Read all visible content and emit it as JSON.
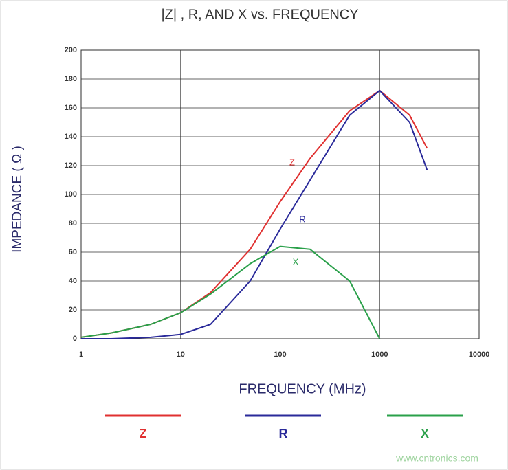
{
  "chart_data": {
    "type": "line",
    "title": "|Z| , R, AND X vs. FREQUENCY",
    "x_label": "FREQUENCY (MHz)",
    "y_label": "IMPEDANCE ( Ω )",
    "x": [
      1,
      2,
      5,
      10,
      20,
      50,
      100,
      200,
      500,
      1000,
      2000,
      3000
    ],
    "series": [
      {
        "name": "Z",
        "color": "#e03030",
        "values": [
          1,
          4,
          10,
          18,
          32,
          62,
          95,
          125,
          158,
          172,
          155,
          132
        ]
      },
      {
        "name": "R",
        "color": "#2a2a9a",
        "values": [
          0,
          0,
          1,
          3,
          10,
          40,
          76,
          110,
          155,
          172,
          150,
          117
        ]
      },
      {
        "name": "X",
        "color": "#2aa04a",
        "values": [
          1,
          4,
          10,
          18,
          31,
          52,
          64,
          62,
          40,
          0,
          null,
          null
        ]
      }
    ],
    "annotations": [
      "Z",
      "R",
      "X"
    ],
    "xlim": [
      1,
      10000
    ],
    "xticks": [
      1,
      10,
      100,
      1000,
      10000
    ],
    "xscale": "log",
    "ylim": [
      0,
      200
    ],
    "yticks": [
      0,
      20,
      40,
      60,
      80,
      100,
      120,
      140,
      160,
      180,
      200
    ],
    "grid": true,
    "watermark": "www.cntronics.com"
  }
}
